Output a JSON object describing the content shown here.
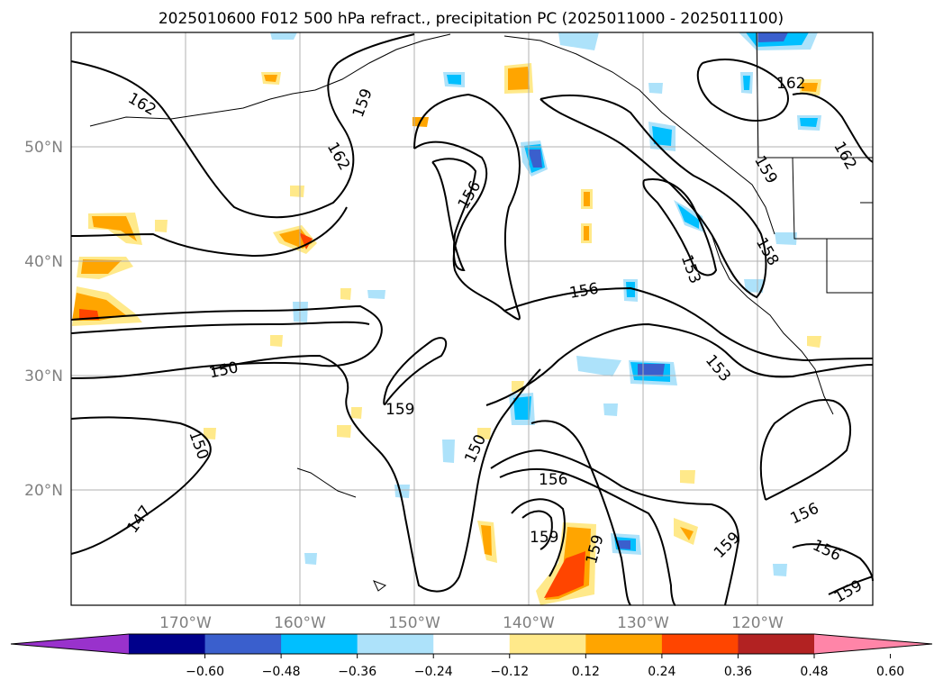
{
  "title": "2025010600 F012 500 hPa refract., precipitation PC (2025011000 - 2025011100)",
  "map": {
    "lon_labels": [
      "170°W",
      "160°W",
      "150°W",
      "140°W",
      "130°W",
      "120°W"
    ],
    "lat_labels": [
      "50°N",
      "40°N",
      "30°N",
      "20°N"
    ],
    "contour_levels_labeled": [
      "162",
      "162",
      "159",
      "162",
      "156",
      "156",
      "153",
      "159",
      "158",
      "150",
      "159",
      "150",
      "147",
      "150",
      "156",
      "159",
      "159",
      "153",
      "156",
      "159",
      "156",
      "159",
      "162"
    ]
  },
  "colorbar": {
    "ticks": [
      "−0.60",
      "−0.48",
      "−0.36",
      "−0.24",
      "−0.12",
      "0.12",
      "0.24",
      "0.36",
      "0.48",
      "0.60"
    ],
    "colors": [
      "#9932CC",
      "#00008B",
      "#3A5FCD",
      "#00BFFF",
      "#ADE2FA",
      "#FFFFFF",
      "#FFE98A",
      "#FFA500",
      "#FF4500",
      "#B22222",
      "#FF85A8"
    ]
  }
}
